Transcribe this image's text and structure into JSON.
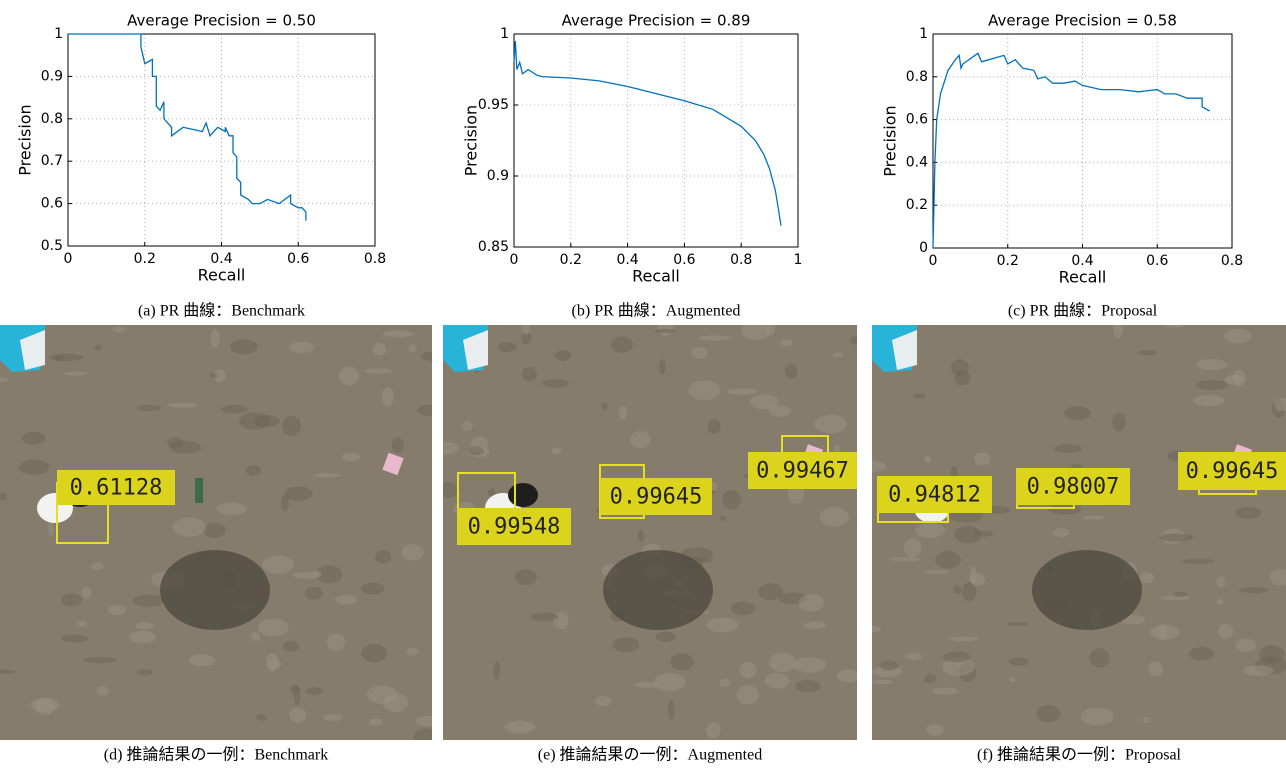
{
  "chart_data": [
    {
      "type": "line",
      "title": "Average Precision = 0.50",
      "xlabel": "Recall",
      "ylabel": "Precision",
      "caption": "(a) PR 曲線：Benchmark",
      "color": "#0072bd",
      "grid": true,
      "xlim": [
        0,
        0.8
      ],
      "xticks": [
        0,
        0.2,
        0.4,
        0.6,
        0.8
      ],
      "ylim": [
        0.5,
        1
      ],
      "yticks": [
        0.5,
        0.6,
        0.7,
        0.8,
        0.9,
        1
      ],
      "x": [
        0,
        0.19,
        0.19,
        0.2,
        0.22,
        0.22,
        0.23,
        0.23,
        0.24,
        0.25,
        0.25,
        0.27,
        0.27,
        0.3,
        0.35,
        0.36,
        0.37,
        0.39,
        0.41,
        0.41,
        0.42,
        0.43,
        0.43,
        0.44,
        0.44,
        0.45,
        0.45,
        0.47,
        0.48,
        0.5,
        0.52,
        0.55,
        0.58,
        0.58,
        0.6,
        0.61,
        0.62,
        0.62
      ],
      "values": [
        1,
        1,
        0.97,
        0.93,
        0.94,
        0.9,
        0.9,
        0.83,
        0.82,
        0.84,
        0.8,
        0.78,
        0.76,
        0.78,
        0.77,
        0.79,
        0.76,
        0.78,
        0.77,
        0.78,
        0.76,
        0.76,
        0.72,
        0.71,
        0.66,
        0.65,
        0.62,
        0.61,
        0.6,
        0.6,
        0.61,
        0.6,
        0.62,
        0.6,
        0.59,
        0.59,
        0.58,
        0.56
      ]
    },
    {
      "type": "line",
      "title": "Average Precision = 0.89",
      "xlabel": "Recall",
      "ylabel": "Precision",
      "caption": "(b) PR 曲線：Augmented",
      "color": "#0072bd",
      "grid": true,
      "xlim": [
        0,
        1
      ],
      "xticks": [
        0,
        0.2,
        0.4,
        0.6,
        0.8,
        1
      ],
      "ylim": [
        0.85,
        1
      ],
      "yticks": [
        0.85,
        0.9,
        0.95,
        1
      ],
      "x": [
        0,
        0.005,
        0.01,
        0.02,
        0.03,
        0.05,
        0.08,
        0.1,
        0.2,
        0.3,
        0.4,
        0.5,
        0.6,
        0.7,
        0.8,
        0.85,
        0.88,
        0.9,
        0.92,
        0.93,
        0.94
      ],
      "values": [
        0.98,
        0.995,
        0.975,
        0.98,
        0.972,
        0.975,
        0.971,
        0.97,
        0.969,
        0.967,
        0.963,
        0.958,
        0.953,
        0.947,
        0.935,
        0.925,
        0.915,
        0.905,
        0.89,
        0.878,
        0.865
      ]
    },
    {
      "type": "line",
      "title": "Average Precision = 0.58",
      "xlabel": "Recall",
      "ylabel": "Precision",
      "caption": "(c) PR 曲線：Proposal",
      "color": "#0072bd",
      "grid": true,
      "xlim": [
        0,
        0.8
      ],
      "xticks": [
        0,
        0.2,
        0.4,
        0.6,
        0.8
      ],
      "ylim": [
        0,
        1
      ],
      "yticks": [
        0,
        0.2,
        0.4,
        0.6,
        0.8,
        1
      ],
      "x": [
        0,
        0.005,
        0.01,
        0.02,
        0.04,
        0.06,
        0.07,
        0.075,
        0.08,
        0.12,
        0.13,
        0.17,
        0.19,
        0.2,
        0.22,
        0.24,
        0.27,
        0.28,
        0.3,
        0.32,
        0.35,
        0.38,
        0.4,
        0.45,
        0.5,
        0.55,
        0.6,
        0.62,
        0.65,
        0.68,
        0.72,
        0.72,
        0.74
      ],
      "values": [
        0,
        0.4,
        0.6,
        0.72,
        0.83,
        0.88,
        0.9,
        0.84,
        0.86,
        0.91,
        0.87,
        0.89,
        0.9,
        0.86,
        0.88,
        0.84,
        0.83,
        0.79,
        0.8,
        0.77,
        0.77,
        0.78,
        0.76,
        0.74,
        0.74,
        0.73,
        0.74,
        0.72,
        0.72,
        0.7,
        0.7,
        0.66,
        0.64
      ]
    }
  ],
  "images": [
    {
      "caption": "(d) 推論結果の一例：Benchmark",
      "detections": [
        "0.61128"
      ]
    },
    {
      "caption": "(e) 推論結果の一例：Augmented",
      "detections": [
        "0.99548",
        "0.99645",
        "0.99467"
      ]
    },
    {
      "caption": "(f) 推論結果の一例：Proposal",
      "detections": [
        "0.94812",
        "0.98007",
        "0.99645"
      ]
    }
  ]
}
